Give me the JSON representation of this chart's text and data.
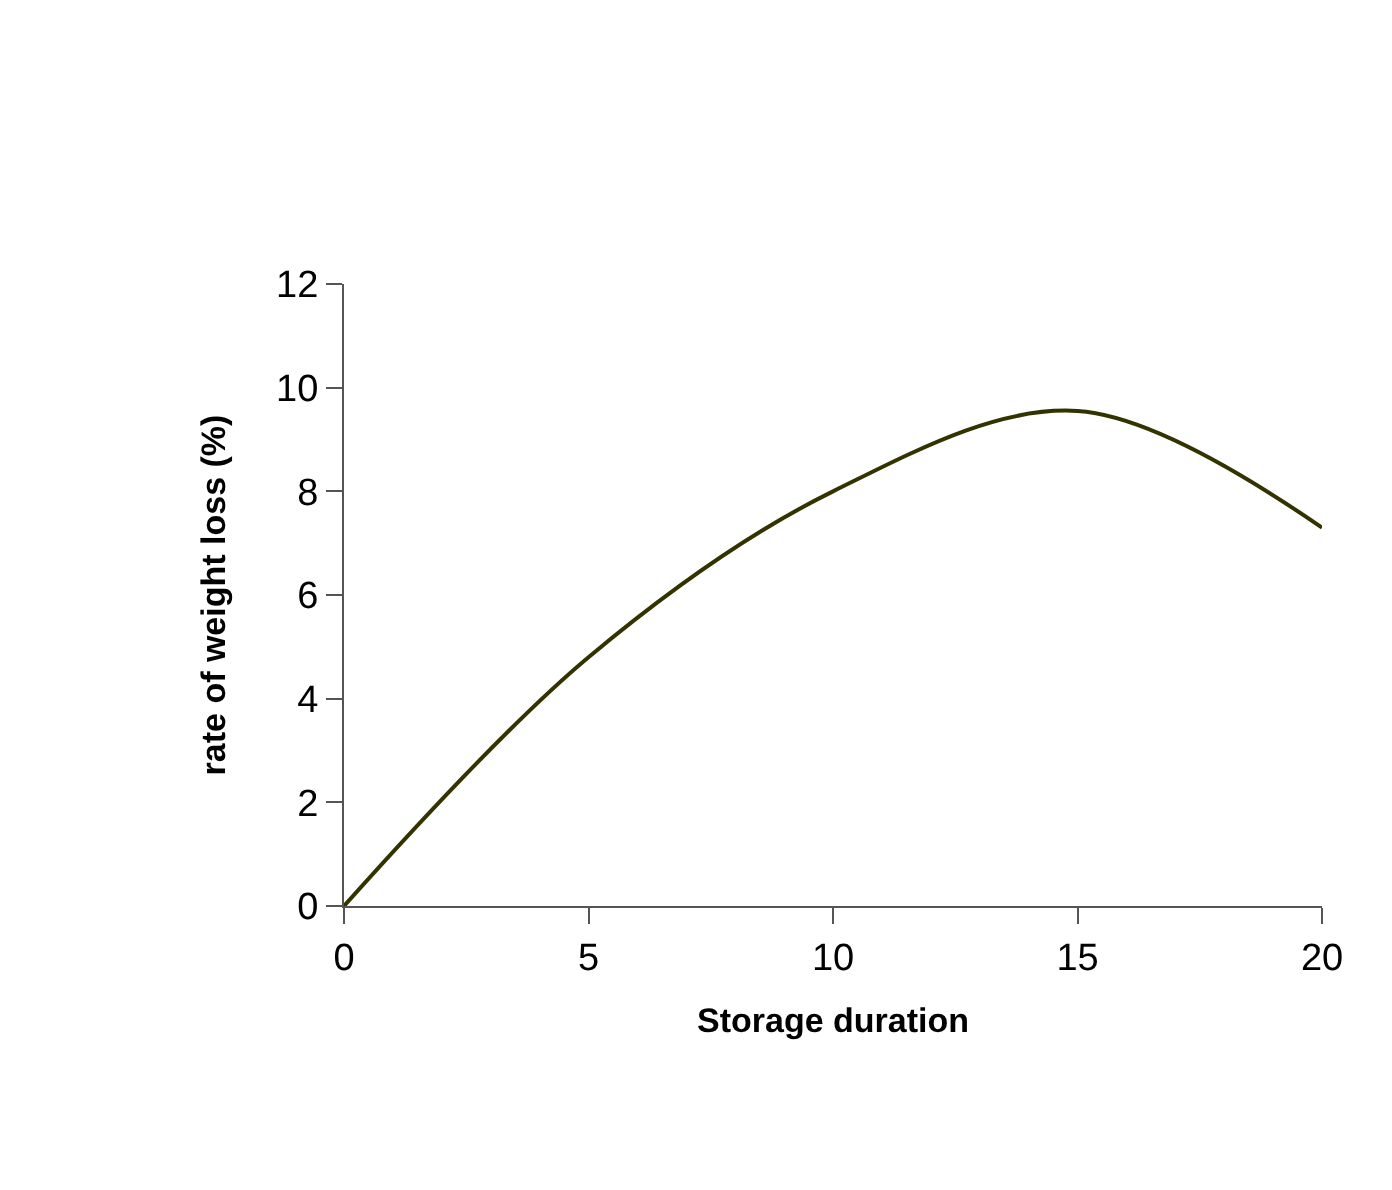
{
  "chart_data": {
    "type": "line",
    "xlabel": "Storage duration",
    "ylabel": "rate of weight loss (%)",
    "x": [
      0,
      5,
      10,
      15,
      20
    ],
    "series": [
      {
        "color": "#333300",
        "values": [
          0,
          4.8,
          8.0,
          9.55,
          7.3
        ]
      }
    ],
    "xlim": [
      0,
      20
    ],
    "xticks": [
      0,
      5,
      10,
      15,
      20
    ],
    "ylim": [
      0,
      12
    ],
    "yticks": [
      0,
      2,
      4,
      6,
      8,
      10,
      12
    ],
    "legend": false,
    "marker": "none",
    "line_style": "solid"
  }
}
